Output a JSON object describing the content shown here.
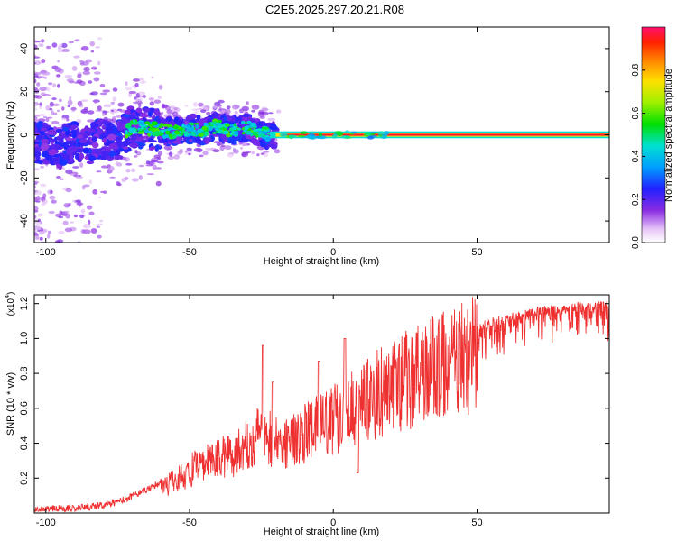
{
  "title": "C2E5.2025.297.20.21.R08",
  "chart_data": [
    {
      "type": "heatmap",
      "name": "spectrogram",
      "xlabel": "Height of straight line (km)",
      "ylabel": "Frequency (Hz)",
      "xlim": [
        -104,
        96
      ],
      "ylim": [
        -50,
        50
      ],
      "xticks": [
        -100,
        -50,
        0,
        50
      ],
      "yticks": [
        -40,
        -20,
        0,
        20,
        40
      ],
      "ridge": [
        {
          "x": -100,
          "y": -4
        },
        {
          "x": -95,
          "y": -6
        },
        {
          "x": -90,
          "y": -3
        },
        {
          "x": -85,
          "y": -5
        },
        {
          "x": -80,
          "y": -2
        },
        {
          "x": -75,
          "y": -3
        },
        {
          "x": -70,
          "y": 4
        },
        {
          "x": -65,
          "y": 3
        },
        {
          "x": -60,
          "y": 2
        },
        {
          "x": -55,
          "y": 1
        },
        {
          "x": -50,
          "y": 3
        },
        {
          "x": -45,
          "y": 2
        },
        {
          "x": -40,
          "y": 4
        },
        {
          "x": -35,
          "y": 2
        },
        {
          "x": -30,
          "y": 3
        },
        {
          "x": -25,
          "y": 1
        },
        {
          "x": -20,
          "y": -1
        },
        {
          "x": -15,
          "y": -1
        },
        {
          "x": -10,
          "y": 0
        },
        {
          "x": -5,
          "y": 0
        },
        {
          "x": 0,
          "y": 0
        },
        {
          "x": 10,
          "y": 0
        },
        {
          "x": 20,
          "y": 0
        },
        {
          "x": 40,
          "y": 0
        },
        {
          "x": 60,
          "y": 0
        },
        {
          "x": 80,
          "y": 0
        },
        {
          "x": 96,
          "y": 0
        }
      ],
      "colorbar": {
        "label": "Normalized spectral amplitude",
        "range": [
          0,
          1
        ],
        "ticks": [
          "0.0",
          "0.2",
          "0.4",
          "0.6",
          "0.8"
        ]
      }
    },
    {
      "type": "line",
      "name": "snr",
      "xlabel": "Height of straight line (km)",
      "ylabel": "SNR (10 * v/v)",
      "scale_label": "(x10",
      "scale_exp": "4",
      "xlim": [
        -104,
        96
      ],
      "ylim": [
        0,
        1.25
      ],
      "xticks": [
        -100,
        -50,
        0,
        50
      ],
      "yticks": [
        "0.2",
        "0.4",
        "0.6",
        "0.8",
        "1.0",
        "1.2"
      ],
      "color": "#ee3030",
      "envelope": {
        "x": [
          -104,
          -95,
          -90,
          -85,
          -80,
          -75,
          -70,
          -65,
          -60,
          -55,
          -50,
          -45,
          -40,
          -35,
          -30,
          -27,
          -25,
          -22,
          -20,
          -15,
          -10,
          -5,
          0,
          5,
          10,
          15,
          20,
          25,
          30,
          35,
          40,
          45,
          50,
          55,
          60,
          65,
          70,
          75,
          80,
          85,
          90,
          96
        ],
        "y": [
          0.02,
          0.03,
          0.03,
          0.04,
          0.05,
          0.07,
          0.1,
          0.14,
          0.18,
          0.22,
          0.27,
          0.32,
          0.36,
          0.4,
          0.44,
          0.5,
          0.55,
          0.5,
          0.45,
          0.48,
          0.52,
          0.57,
          0.62,
          0.67,
          0.72,
          0.77,
          0.82,
          0.87,
          0.91,
          0.95,
          0.98,
          1.01,
          1.04,
          1.07,
          1.09,
          1.11,
          1.13,
          1.14,
          1.15,
          1.16,
          1.16,
          1.17
        ]
      },
      "spikes": [
        {
          "x": -24.5,
          "y": 0.96
        },
        {
          "x": -21,
          "y": 0.75
        },
        {
          "x": -5,
          "y": 0.87
        },
        {
          "x": 4,
          "y": 1.0
        },
        {
          "x": 8.5,
          "y": 0.23
        }
      ]
    }
  ]
}
